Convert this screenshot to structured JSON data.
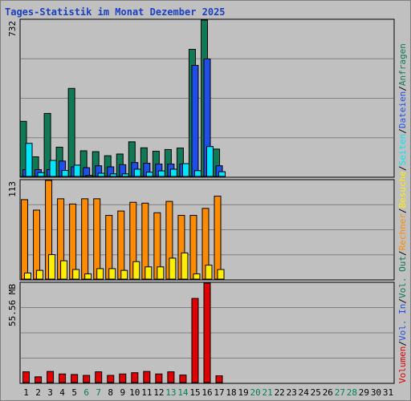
{
  "chart_data": {
    "type": "bar",
    "title": "Tages-Statistik im Monat Dezember 2025",
    "x": [
      "1",
      "2",
      "3",
      "4",
      "5",
      "6",
      "7",
      "8",
      "9",
      "10",
      "11",
      "12",
      "13",
      "14",
      "15",
      "16",
      "17",
      "18",
      "19",
      "20",
      "21",
      "22",
      "23",
      "24",
      "25",
      "26",
      "27",
      "28",
      "29",
      "30",
      "31"
    ],
    "weekend_days": [
      "6",
      "7",
      "13",
      "14",
      "20",
      "21",
      "27",
      "28"
    ],
    "panels": [
      {
        "id": "top",
        "max_label": "732",
        "ymax": 732,
        "series": [
          {
            "name": "Anfragen",
            "color": "#0f7a55",
            "values": [
              258,
              92,
              295,
              137,
              412,
              120,
              116,
              97,
              105,
              162,
              134,
              118,
              126,
              133,
              595,
              732,
              128,
              null,
              null,
              null,
              null,
              null,
              null,
              null,
              null,
              null,
              null,
              null,
              null,
              null,
              null
            ]
          },
          {
            "name": "Dateien",
            "color": "#1f4fe8",
            "values": [
              32,
              32,
              32,
              72,
              45,
              41,
              50,
              45,
              55,
              65,
              62,
              58,
              58,
              58,
              520,
              550,
              50,
              null,
              null,
              null,
              null,
              null,
              null,
              null,
              null,
              null,
              null,
              null,
              null,
              null,
              null
            ]
          },
          {
            "name": "Seiten",
            "color": "#00e5ff",
            "values": [
              155,
              18,
              75,
              28,
              53,
              5,
              15,
              12,
              12,
              34,
              20,
              26,
              34,
              60,
              27,
              140,
              22,
              null,
              null,
              null,
              null,
              null,
              null,
              null,
              null,
              null,
              null,
              null,
              null,
              null,
              null
            ]
          }
        ]
      },
      {
        "id": "middle",
        "max_label": "113",
        "ymax": 113,
        "series": [
          {
            "name": "Rechner",
            "color": "#ff8c00",
            "values": [
              91,
              79,
              113,
              92,
              86,
              92,
              92,
              73,
              78,
              88,
              87,
              76,
              89,
              73,
              73,
              81,
              95,
              null,
              null,
              null,
              null,
              null,
              null,
              null,
              null,
              null,
              null,
              null,
              null,
              null,
              null
            ]
          },
          {
            "name": "Besuche",
            "color": "#ffee00",
            "values": [
              7,
              10,
              28,
              21,
              11,
              6,
              12,
              12,
              10,
              20,
              14,
              14,
              24,
              30,
              6,
              16,
              11,
              null,
              null,
              null,
              null,
              null,
              null,
              null,
              null,
              null,
              null,
              null,
              null,
              null,
              null
            ]
          }
        ]
      },
      {
        "id": "bottom",
        "max_label": "55.56 MB",
        "ymax": 55.56,
        "series": [
          {
            "name": "Volumen",
            "color": "#e00000",
            "values": [
              6.0,
              3.2,
              6.2,
              4.8,
              4.5,
              4.0,
              6.0,
              4.0,
              4.8,
              5.5,
              6.2,
              4.8,
              6.0,
              4.2,
              47.0,
              55.56,
              3.8,
              null,
              null,
              null,
              null,
              null,
              null,
              null,
              null,
              null,
              null,
              null,
              null,
              null,
              null
            ]
          }
        ]
      }
    ],
    "legend": [
      {
        "text": "Volumen",
        "color": "#e00000"
      },
      {
        "text": "/",
        "color": "#000000"
      },
      {
        "text": "Vol. In",
        "color": "#1f4fe8"
      },
      {
        "text": "/",
        "color": "#000000"
      },
      {
        "text": "Vol. Out",
        "color": "#0f7a55"
      },
      {
        "text": "/",
        "color": "#000000"
      },
      {
        "text": "Rechner",
        "color": "#ff8c00"
      },
      {
        "text": "/",
        "color": "#000000"
      },
      {
        "text": "Besuche",
        "color": "#ffee00"
      },
      {
        "text": "/",
        "color": "#000000"
      },
      {
        "text": "Seiten",
        "color": "#00e5ff"
      },
      {
        "text": "/",
        "color": "#000000"
      },
      {
        "text": "Dateien",
        "color": "#1f4fe8"
      },
      {
        "text": "/",
        "color": "#000000"
      },
      {
        "text": "Anfragen",
        "color": "#0f7a55"
      }
    ],
    "colors": {
      "background": "#c0c0c0",
      "grid": "#808080",
      "weekday_label": "#000000",
      "weekend_label": "#00805a",
      "title": "#1a3fc0"
    },
    "grid": true,
    "legend_placement": "right"
  }
}
